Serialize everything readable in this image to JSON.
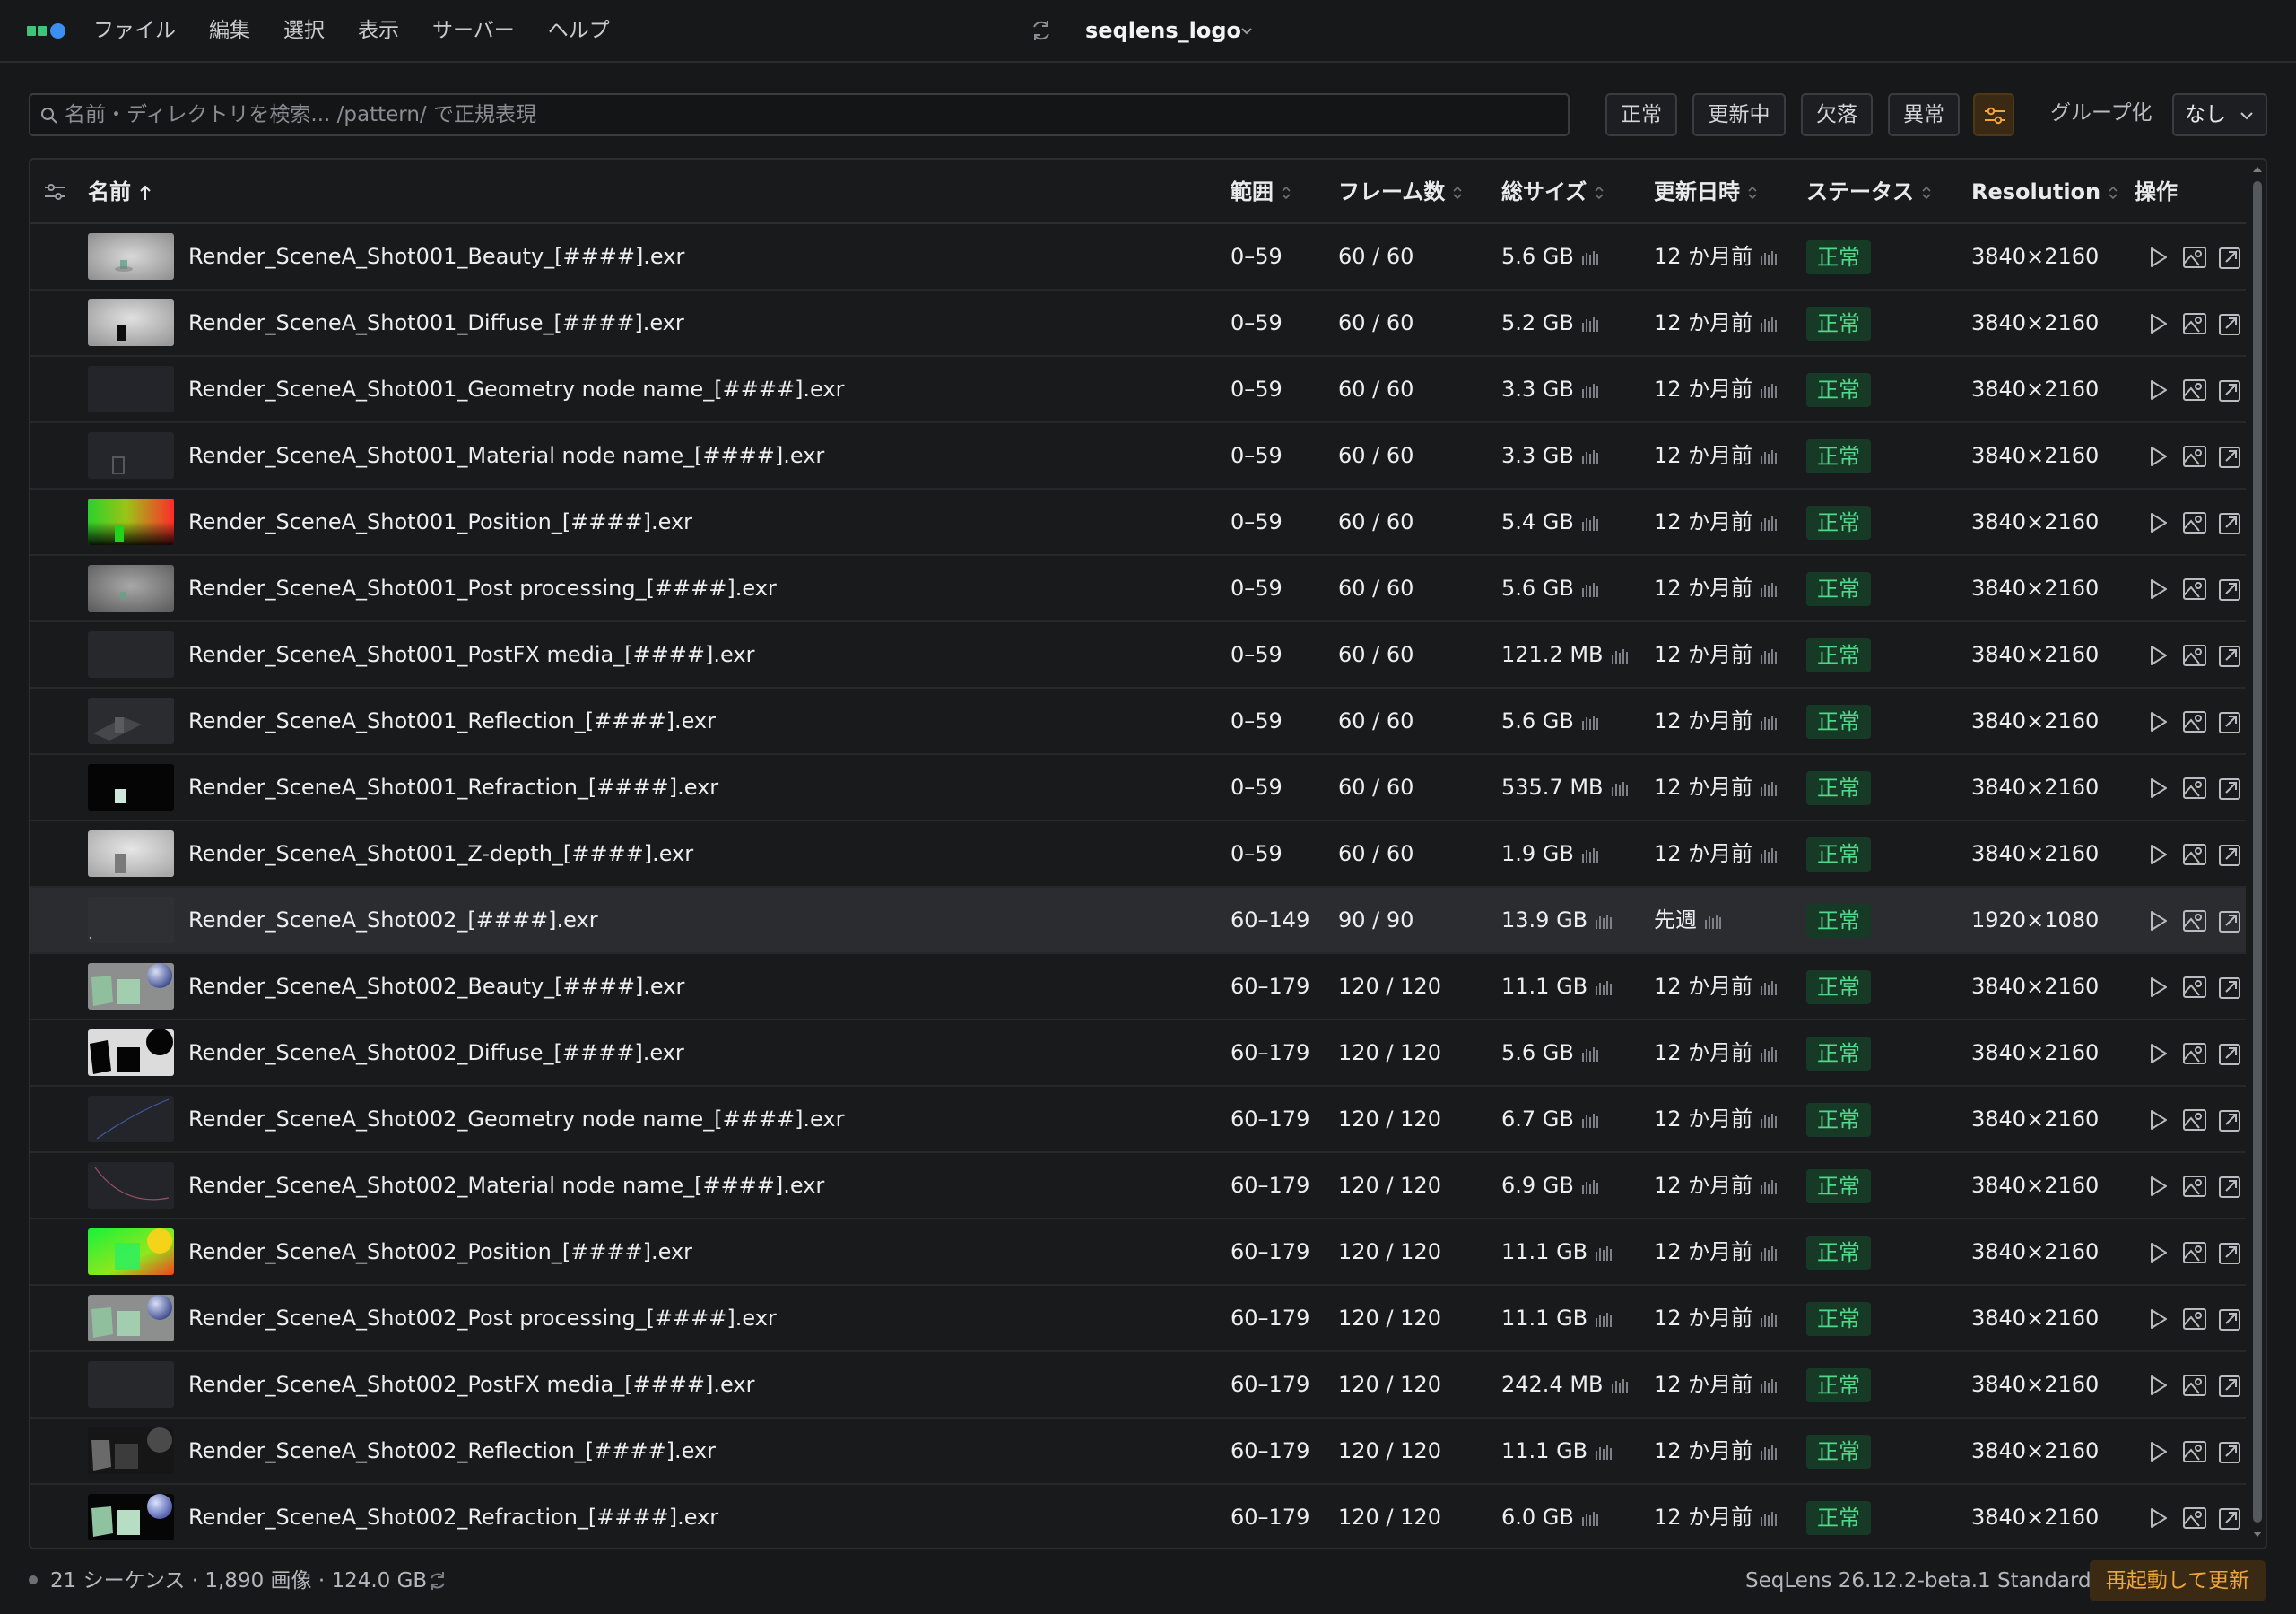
{
  "menubar": {
    "menu_items": [
      "ファイル",
      "編集",
      "選択",
      "表示",
      "サーバー",
      "ヘルプ"
    ],
    "project_name": "seqlens_logo"
  },
  "toolbar": {
    "search_placeholder": "名前・ディレクトリを検索... /pattern/ で正規表現",
    "filters": [
      "正常",
      "更新中",
      "欠落",
      "異常"
    ],
    "group_by_label": "グループ化",
    "group_by_value": "なし",
    "accent_color": "#f0a63a"
  },
  "table": {
    "columns": {
      "name": "名前",
      "range": "範囲",
      "frames": "フレーム数",
      "size": "総サイズ",
      "modified": "更新日時",
      "status": "ステータス",
      "resolution": "Resolution",
      "actions": "操作"
    },
    "status_color": "#4fd889",
    "rows": [
      {
        "name": "Render_SceneA_Shot001_Beauty_[####].exr",
        "range": "0–59",
        "frames": "60 / 60",
        "size": "5.6 GB",
        "modified": "12 か月前",
        "status": "正常",
        "resolution": "3840×2160",
        "thumb": "beauty1"
      },
      {
        "name": "Render_SceneA_Shot001_Diffuse_[####].exr",
        "range": "0–59",
        "frames": "60 / 60",
        "size": "5.2 GB",
        "modified": "12 か月前",
        "status": "正常",
        "resolution": "3840×2160",
        "thumb": "diffuse1"
      },
      {
        "name": "Render_SceneA_Shot001_Geometry node name_[####].exr",
        "range": "0–59",
        "frames": "60 / 60",
        "size": "3.3 GB",
        "modified": "12 か月前",
        "status": "正常",
        "resolution": "3840×2160",
        "thumb": "dark1"
      },
      {
        "name": "Render_SceneA_Shot001_Material node name_[####].exr",
        "range": "0–59",
        "frames": "60 / 60",
        "size": "3.3 GB",
        "modified": "12 か月前",
        "status": "正常",
        "resolution": "3840×2160",
        "thumb": "material1"
      },
      {
        "name": "Render_SceneA_Shot001_Position_[####].exr",
        "range": "0–59",
        "frames": "60 / 60",
        "size": "5.4 GB",
        "modified": "12 か月前",
        "status": "正常",
        "resolution": "3840×2160",
        "thumb": "position1"
      },
      {
        "name": "Render_SceneA_Shot001_Post processing_[####].exr",
        "range": "0–59",
        "frames": "60 / 60",
        "size": "5.6 GB",
        "modified": "12 か月前",
        "status": "正常",
        "resolution": "3840×2160",
        "thumb": "post1"
      },
      {
        "name": "Render_SceneA_Shot001_PostFX media_[####].exr",
        "range": "0–59",
        "frames": "60 / 60",
        "size": "121.2 MB",
        "modified": "12 か月前",
        "status": "正常",
        "resolution": "3840×2160",
        "thumb": "dark2"
      },
      {
        "name": "Render_SceneA_Shot001_Reflection_[####].exr",
        "range": "0–59",
        "frames": "60 / 60",
        "size": "5.6 GB",
        "modified": "12 か月前",
        "status": "正常",
        "resolution": "3840×2160",
        "thumb": "reflection1"
      },
      {
        "name": "Render_SceneA_Shot001_Refraction_[####].exr",
        "range": "0–59",
        "frames": "60 / 60",
        "size": "535.7 MB",
        "modified": "12 か月前",
        "status": "正常",
        "resolution": "3840×2160",
        "thumb": "refraction1"
      },
      {
        "name": "Render_SceneA_Shot001_Z-depth_[####].exr",
        "range": "0–59",
        "frames": "60 / 60",
        "size": "1.9 GB",
        "modified": "12 か月前",
        "status": "正常",
        "resolution": "3840×2160",
        "thumb": "zdepth1"
      },
      {
        "name": "Render_SceneA_Shot002_[####].exr",
        "range": "60–149",
        "frames": "90 / 90",
        "size": "13.9 GB",
        "modified": "先週",
        "status": "正常",
        "resolution": "1920×1080",
        "thumb": "dark3",
        "selected": true
      },
      {
        "name": "Render_SceneA_Shot002_Beauty_[####].exr",
        "range": "60–179",
        "frames": "120 / 120",
        "size": "11.1 GB",
        "modified": "12 か月前",
        "status": "正常",
        "resolution": "3840×2160",
        "thumb": "beauty2"
      },
      {
        "name": "Render_SceneA_Shot002_Diffuse_[####].exr",
        "range": "60–179",
        "frames": "120 / 120",
        "size": "5.6 GB",
        "modified": "12 か月前",
        "status": "正常",
        "resolution": "3840×2160",
        "thumb": "diffuse2"
      },
      {
        "name": "Render_SceneA_Shot002_Geometry node name_[####].exr",
        "range": "60–179",
        "frames": "120 / 120",
        "size": "6.7 GB",
        "modified": "12 か月前",
        "status": "正常",
        "resolution": "3840×2160",
        "thumb": "geometry2"
      },
      {
        "name": "Render_SceneA_Shot002_Material node name_[####].exr",
        "range": "60–179",
        "frames": "120 / 120",
        "size": "6.9 GB",
        "modified": "12 か月前",
        "status": "正常",
        "resolution": "3840×2160",
        "thumb": "material2"
      },
      {
        "name": "Render_SceneA_Shot002_Position_[####].exr",
        "range": "60–179",
        "frames": "120 / 120",
        "size": "11.1 GB",
        "modified": "12 か月前",
        "status": "正常",
        "resolution": "3840×2160",
        "thumb": "position2"
      },
      {
        "name": "Render_SceneA_Shot002_Post processing_[####].exr",
        "range": "60–179",
        "frames": "120 / 120",
        "size": "11.1 GB",
        "modified": "12 か月前",
        "status": "正常",
        "resolution": "3840×2160",
        "thumb": "beauty2"
      },
      {
        "name": "Render_SceneA_Shot002_PostFX media_[####].exr",
        "range": "60–179",
        "frames": "120 / 120",
        "size": "242.4 MB",
        "modified": "12 か月前",
        "status": "正常",
        "resolution": "3840×2160",
        "thumb": "dark2"
      },
      {
        "name": "Render_SceneA_Shot002_Reflection_[####].exr",
        "range": "60–179",
        "frames": "120 / 120",
        "size": "11.1 GB",
        "modified": "12 か月前",
        "status": "正常",
        "resolution": "3840×2160",
        "thumb": "reflection2"
      },
      {
        "name": "Render_SceneA_Shot002_Refraction_[####].exr",
        "range": "60–179",
        "frames": "120 / 120",
        "size": "6.0 GB",
        "modified": "12 か月前",
        "status": "正常",
        "resolution": "3840×2160",
        "thumb": "refraction2"
      }
    ]
  },
  "statusbar": {
    "summary": "21 シーケンス · 1,890 画像 · 124.0 GB",
    "version": "SeqLens 26.12.2-beta.1 Standard",
    "restart_button": "再起動して更新"
  }
}
